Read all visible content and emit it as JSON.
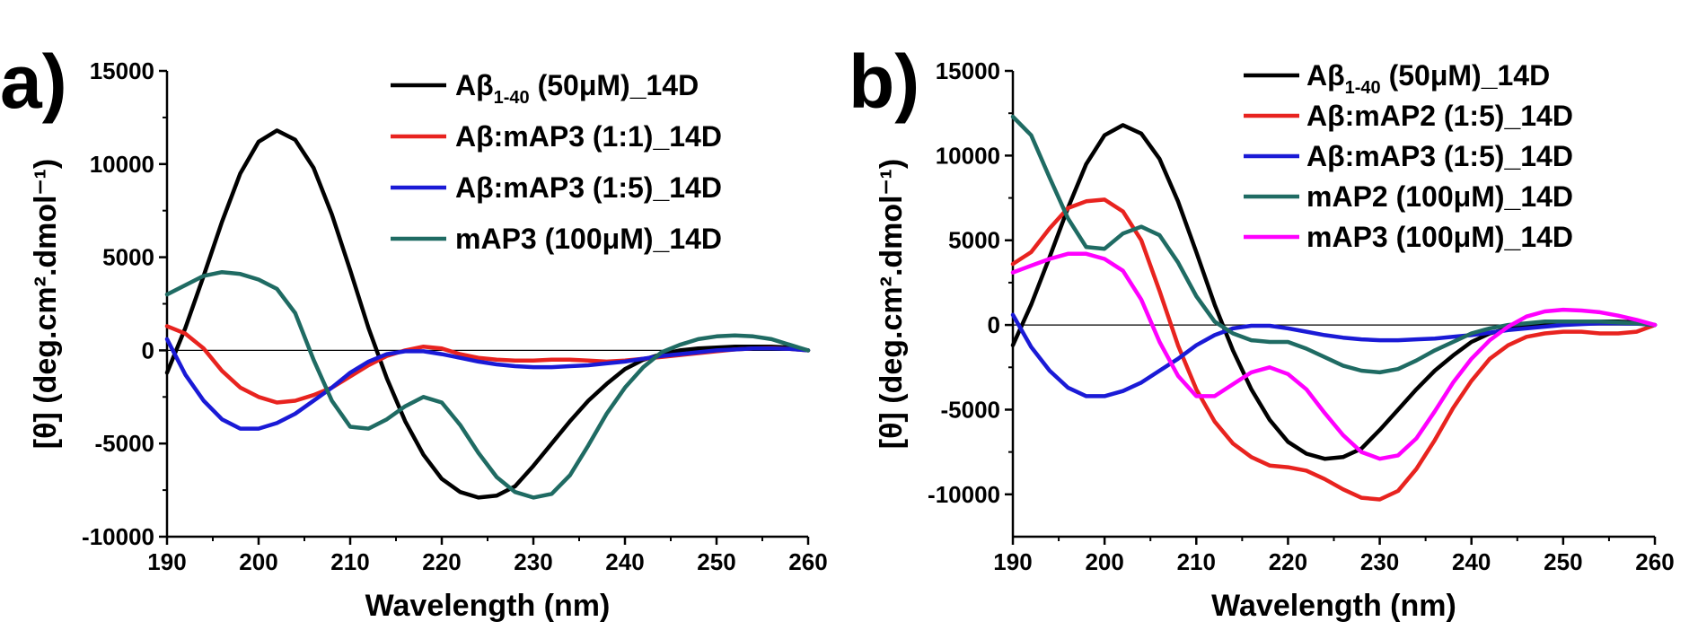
{
  "chart_data": [
    {
      "type": "line",
      "panel_label": "a)",
      "xlabel": "Wavelength (nm)",
      "ylabel": "[θ] (deg.cm².dmol⁻¹)",
      "xlim": [
        190,
        260
      ],
      "ylim": [
        -10000,
        15000
      ],
      "xticks": [
        190,
        200,
        210,
        220,
        230,
        240,
        250,
        260
      ],
      "yticks": [
        -10000,
        -5000,
        0,
        5000,
        10000,
        15000
      ],
      "zero_line": true,
      "legend_position": "top-right",
      "series": [
        {
          "name": "Aβ1-40 (50μM)_14D",
          "legend_parts": [
            "Aβ",
            "1-40",
            " (50μM)_14D"
          ],
          "color": "#000000",
          "x": [
            190,
            192,
            194,
            196,
            198,
            200,
            202,
            204,
            206,
            208,
            210,
            212,
            214,
            216,
            218,
            220,
            222,
            224,
            226,
            228,
            230,
            232,
            234,
            236,
            238,
            240,
            242,
            244,
            246,
            248,
            250,
            252,
            254,
            256,
            258,
            260
          ],
          "y": [
            -1200,
            1200,
            4000,
            6900,
            9500,
            11200,
            11800,
            11300,
            9800,
            7300,
            4300,
            1200,
            -1500,
            -3800,
            -5600,
            -6900,
            -7600,
            -7900,
            -7800,
            -7300,
            -6200,
            -5000,
            -3800,
            -2700,
            -1800,
            -1000,
            -500,
            -200,
            0,
            100,
            150,
            200,
            200,
            200,
            150,
            0
          ]
        },
        {
          "name": "Aβ:mAP3 (1:1)_14D",
          "legend_parts": [
            "Aβ:mAP3 (1:1)_14D"
          ],
          "color": "#e8231f",
          "x": [
            190,
            192,
            194,
            196,
            198,
            200,
            202,
            204,
            206,
            208,
            210,
            212,
            214,
            216,
            218,
            220,
            222,
            224,
            226,
            228,
            230,
            232,
            234,
            236,
            238,
            240,
            242,
            244,
            246,
            248,
            250,
            252,
            254,
            256,
            258,
            260
          ],
          "y": [
            1300,
            900,
            100,
            -1100,
            -2000,
            -2500,
            -2800,
            -2700,
            -2400,
            -2000,
            -1400,
            -800,
            -300,
            0,
            200,
            100,
            -200,
            -400,
            -500,
            -550,
            -550,
            -500,
            -500,
            -550,
            -600,
            -550,
            -450,
            -350,
            -250,
            -150,
            -50,
            50,
            100,
            120,
            80,
            0
          ]
        },
        {
          "name": "Aβ:mAP3 (1:5)_14D",
          "legend_parts": [
            "Aβ:mAP3 (1:5)_14D"
          ],
          "color": "#1a1ad6",
          "x": [
            190,
            192,
            194,
            196,
            198,
            200,
            202,
            204,
            206,
            208,
            210,
            212,
            214,
            216,
            218,
            220,
            222,
            224,
            226,
            228,
            230,
            232,
            234,
            236,
            238,
            240,
            242,
            244,
            246,
            248,
            250,
            252,
            254,
            256,
            258,
            260
          ],
          "y": [
            600,
            -1300,
            -2700,
            -3700,
            -4200,
            -4200,
            -3900,
            -3400,
            -2700,
            -2000,
            -1200,
            -600,
            -200,
            -50,
            -50,
            -200,
            -400,
            -600,
            -750,
            -850,
            -900,
            -900,
            -850,
            -800,
            -700,
            -600,
            -450,
            -300,
            -200,
            -100,
            0,
            50,
            100,
            100,
            80,
            0
          ]
        },
        {
          "name": "mAP3 (100μM)_14D",
          "legend_parts": [
            "mAP3 (100μM)_14D"
          ],
          "color": "#1f6b63",
          "x": [
            190,
            192,
            194,
            196,
            198,
            200,
            202,
            204,
            206,
            208,
            210,
            212,
            214,
            216,
            218,
            220,
            222,
            224,
            226,
            228,
            230,
            232,
            234,
            236,
            238,
            240,
            242,
            244,
            246,
            248,
            250,
            252,
            254,
            256,
            258,
            260
          ],
          "y": [
            3000,
            3500,
            4000,
            4200,
            4100,
            3800,
            3300,
            2000,
            -500,
            -2700,
            -4100,
            -4200,
            -3700,
            -3000,
            -2500,
            -2800,
            -4000,
            -5500,
            -6800,
            -7600,
            -7900,
            -7700,
            -6700,
            -5100,
            -3400,
            -2000,
            -900,
            -100,
            300,
            600,
            750,
            800,
            750,
            600,
            300,
            0
          ]
        }
      ]
    },
    {
      "type": "line",
      "panel_label": "b)",
      "xlabel": "Wavelength (nm)",
      "ylabel": "[θ] (deg.cm².dmol⁻¹)",
      "xlim": [
        190,
        260
      ],
      "ylim": [
        -12500,
        15000
      ],
      "xticks": [
        190,
        200,
        210,
        220,
        230,
        240,
        250,
        260
      ],
      "yticks": [
        -10000,
        -5000,
        0,
        5000,
        10000,
        15000
      ],
      "zero_line": true,
      "legend_position": "top-right",
      "series": [
        {
          "name": "Aβ1-40 (50μM)_14D",
          "legend_parts": [
            "Aβ",
            "1-40",
            " (50μM)_14D"
          ],
          "color": "#000000",
          "x": [
            190,
            192,
            194,
            196,
            198,
            200,
            202,
            204,
            206,
            208,
            210,
            212,
            214,
            216,
            218,
            220,
            222,
            224,
            226,
            228,
            230,
            232,
            234,
            236,
            238,
            240,
            242,
            244,
            246,
            248,
            250,
            252,
            254,
            256,
            258,
            260
          ],
          "y": [
            -1200,
            1200,
            4000,
            6900,
            9500,
            11200,
            11800,
            11300,
            9800,
            7300,
            4300,
            1200,
            -1500,
            -3800,
            -5600,
            -6900,
            -7600,
            -7900,
            -7800,
            -7300,
            -6200,
            -5000,
            -3800,
            -2700,
            -1800,
            -1000,
            -500,
            -200,
            0,
            100,
            150,
            200,
            200,
            200,
            150,
            0
          ]
        },
        {
          "name": "Aβ:mAP2 (1:5)_14D",
          "legend_parts": [
            "Aβ:mAP2 (1:5)_14D"
          ],
          "color": "#e8231f",
          "x": [
            190,
            192,
            194,
            196,
            198,
            200,
            202,
            204,
            206,
            208,
            210,
            212,
            214,
            216,
            218,
            220,
            222,
            224,
            226,
            228,
            230,
            232,
            234,
            236,
            238,
            240,
            242,
            244,
            246,
            248,
            250,
            252,
            254,
            256,
            258,
            260
          ],
          "y": [
            3600,
            4300,
            5700,
            6900,
            7300,
            7400,
            6700,
            5000,
            2000,
            -1200,
            -3800,
            -5700,
            -7000,
            -7800,
            -8300,
            -8400,
            -8600,
            -9100,
            -9700,
            -10200,
            -10300,
            -9800,
            -8500,
            -6800,
            -4900,
            -3300,
            -2000,
            -1200,
            -700,
            -500,
            -400,
            -400,
            -500,
            -500,
            -400,
            0
          ]
        },
        {
          "name": "Aβ:mAP3 (1:5)_14D",
          "legend_parts": [
            "Aβ:mAP3 (1:5)_14D"
          ],
          "color": "#1a1ad6",
          "x": [
            190,
            192,
            194,
            196,
            198,
            200,
            202,
            204,
            206,
            208,
            210,
            212,
            214,
            216,
            218,
            220,
            222,
            224,
            226,
            228,
            230,
            232,
            234,
            236,
            238,
            240,
            242,
            244,
            246,
            248,
            250,
            252,
            254,
            256,
            258,
            260
          ],
          "y": [
            600,
            -1300,
            -2700,
            -3700,
            -4200,
            -4200,
            -3900,
            -3400,
            -2700,
            -2000,
            -1200,
            -600,
            -200,
            -50,
            -50,
            -200,
            -400,
            -600,
            -750,
            -850,
            -900,
            -900,
            -850,
            -800,
            -700,
            -600,
            -450,
            -300,
            -200,
            -100,
            0,
            50,
            100,
            100,
            80,
            0
          ]
        },
        {
          "name": "mAP2 (100μM)_14D",
          "legend_parts": [
            "mAP2 (100μM)_14D"
          ],
          "color": "#1f6b63",
          "x": [
            190,
            192,
            194,
            196,
            198,
            200,
            202,
            204,
            206,
            208,
            210,
            212,
            214,
            216,
            218,
            220,
            222,
            224,
            226,
            228,
            230,
            232,
            234,
            236,
            238,
            240,
            242,
            244,
            246,
            248,
            250,
            252,
            254,
            256,
            258,
            260
          ],
          "y": [
            12300,
            11200,
            8700,
            6300,
            4600,
            4500,
            5400,
            5800,
            5300,
            3700,
            1700,
            200,
            -500,
            -900,
            -1000,
            -1000,
            -1400,
            -1900,
            -2400,
            -2700,
            -2800,
            -2600,
            -2100,
            -1500,
            -1000,
            -500,
            -200,
            0,
            100,
            200,
            200,
            200,
            200,
            150,
            100,
            0
          ]
        },
        {
          "name": "mAP3 (100μM)_14D",
          "legend_parts": [
            "mAP3 (100μM)_14D"
          ],
          "color": "#ff00ff",
          "x": [
            190,
            192,
            194,
            196,
            198,
            200,
            202,
            204,
            206,
            208,
            210,
            212,
            214,
            216,
            218,
            220,
            222,
            224,
            226,
            228,
            230,
            232,
            234,
            236,
            238,
            240,
            242,
            244,
            246,
            248,
            250,
            252,
            254,
            256,
            258,
            260
          ],
          "y": [
            3100,
            3500,
            3900,
            4200,
            4200,
            3900,
            3200,
            1500,
            -1000,
            -3000,
            -4200,
            -4200,
            -3500,
            -2800,
            -2500,
            -2900,
            -3800,
            -5200,
            -6500,
            -7500,
            -7900,
            -7700,
            -6700,
            -5100,
            -3400,
            -2000,
            -900,
            -100,
            500,
            800,
            900,
            850,
            750,
            550,
            300,
            0
          ]
        }
      ]
    }
  ]
}
